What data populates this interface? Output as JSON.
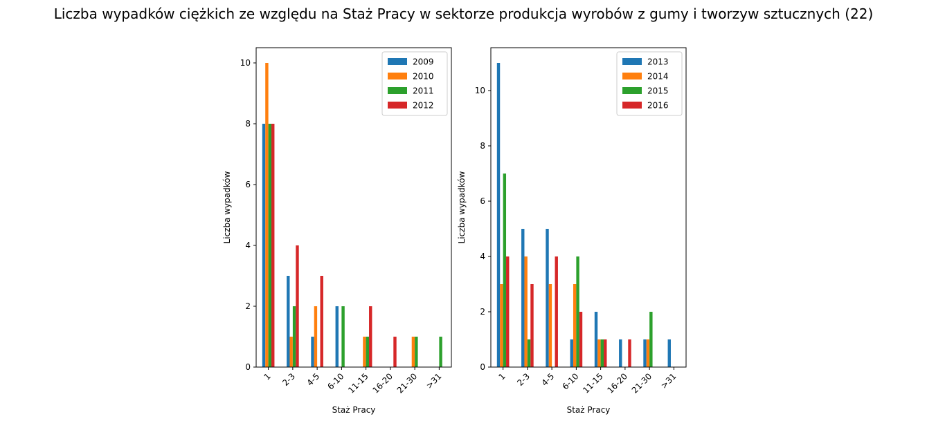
{
  "title": "Liczba wypadków ciężkich ze względu na Staż Pracy w sektorze produkcja wyrobów z gumy i tworzyw sztucznych (22)",
  "chart_data": [
    {
      "type": "bar",
      "categories": [
        "1",
        "2-3",
        "4-5",
        "6-10",
        "11-15",
        "16-20",
        "21-30",
        ">31"
      ],
      "xlabel": "Staż Pracy",
      "ylabel": "Liczba wypadków",
      "ylim": [
        0,
        10.5
      ],
      "yticks": [
        0,
        2,
        4,
        6,
        8,
        10
      ],
      "legend_position": "upper-right",
      "series": [
        {
          "name": "2009",
          "color": "#1f77b4",
          "values": [
            8,
            3,
            1,
            2,
            0,
            0,
            0,
            0
          ]
        },
        {
          "name": "2010",
          "color": "#ff7f0e",
          "values": [
            10,
            1,
            2,
            0,
            1,
            0,
            1,
            0
          ]
        },
        {
          "name": "2011",
          "color": "#2ca02c",
          "values": [
            8,
            2,
            0,
            2,
            1,
            0,
            1,
            1
          ]
        },
        {
          "name": "2012",
          "color": "#d62728",
          "values": [
            8,
            4,
            3,
            0,
            2,
            1,
            0,
            0
          ]
        }
      ]
    },
    {
      "type": "bar",
      "categories": [
        "1",
        "2-3",
        "4-5",
        "6-10",
        "11-15",
        "16-20",
        "21-30",
        ">31"
      ],
      "xlabel": "Staż Pracy",
      "ylabel": "Liczba wypadków",
      "ylim": [
        0,
        11.55
      ],
      "yticks": [
        0,
        2,
        4,
        6,
        8,
        10
      ],
      "legend_position": "upper-right",
      "series": [
        {
          "name": "2013",
          "color": "#1f77b4",
          "values": [
            11,
            5,
            5,
            1,
            2,
            1,
            1,
            1
          ]
        },
        {
          "name": "2014",
          "color": "#ff7f0e",
          "values": [
            3,
            4,
            3,
            3,
            1,
            0,
            1,
            0
          ]
        },
        {
          "name": "2015",
          "color": "#2ca02c",
          "values": [
            7,
            1,
            0,
            4,
            1,
            0,
            2,
            0
          ]
        },
        {
          "name": "2016",
          "color": "#d62728",
          "values": [
            4,
            3,
            4,
            2,
            1,
            1,
            0,
            0
          ]
        }
      ]
    }
  ]
}
